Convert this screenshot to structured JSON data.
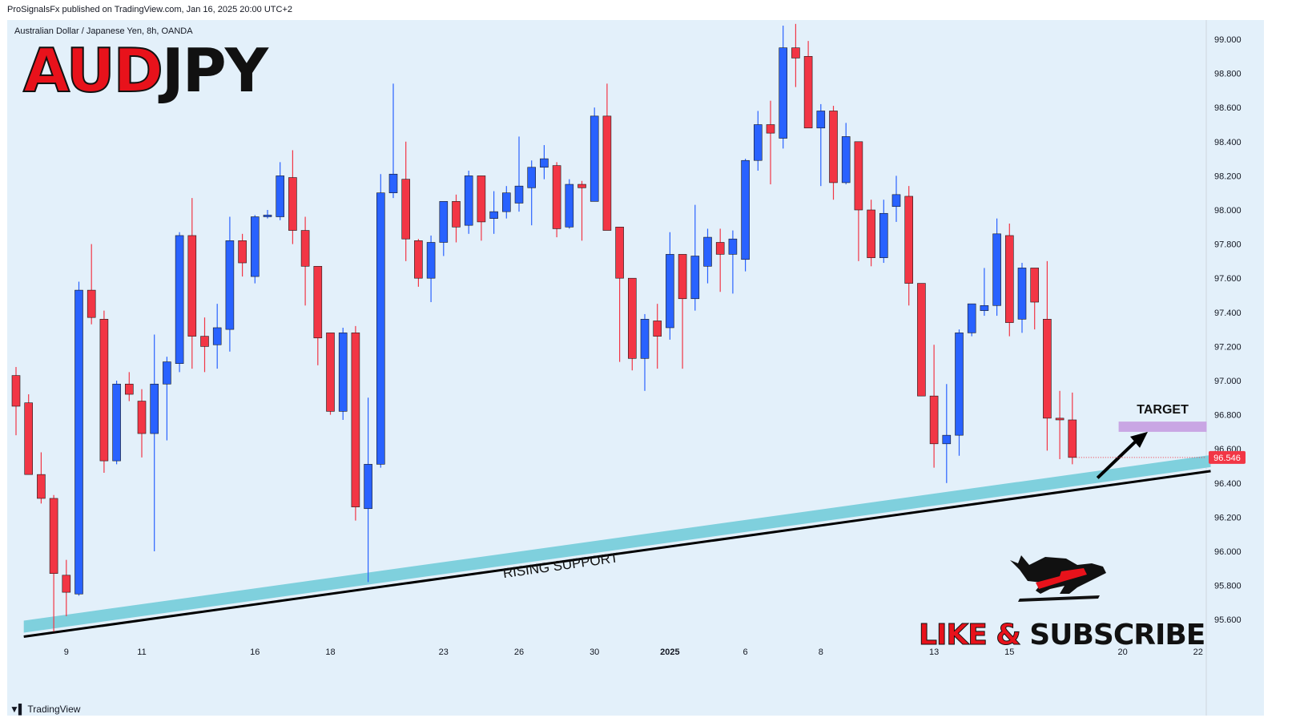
{
  "header": {
    "published": "ProSignalsFx published on TradingView.com, Jan 16, 2025 20:00 UTC+2"
  },
  "chart_meta": {
    "symbol_line": "Australian Dollar / Japanese Yen, 8h, OANDA",
    "title_part1": "AUD",
    "title_part2": "JPY",
    "price_tag": "96.546",
    "target_label": "TARGET",
    "support_label": "RISING SUPPORT",
    "brand_word1": "LIKE & ",
    "brand_word2": "SUBSCRIBE",
    "footer_logo": "TradingView"
  },
  "colors": {
    "up": "#2962ff",
    "down": "#f23645",
    "support_band": "#7fd0dd",
    "target_box": "#c9a6e4",
    "background": "#e3f0fa"
  },
  "chart_data": {
    "type": "candlestick",
    "ylim": [
      95.5,
      99.1
    ],
    "yticks": [
      "99.000",
      "98.800",
      "98.600",
      "98.400",
      "98.200",
      "98.000",
      "97.800",
      "97.600",
      "97.400",
      "97.200",
      "97.000",
      "96.800",
      "96.600",
      "96.400",
      "96.200",
      "96.000",
      "95.800",
      "95.600"
    ],
    "xticks": [
      {
        "label": "9",
        "i": 4
      },
      {
        "label": "11",
        "i": 10
      },
      {
        "label": "16",
        "i": 19
      },
      {
        "label": "18",
        "i": 25
      },
      {
        "label": "23",
        "i": 34
      },
      {
        "label": "26",
        "i": 40
      },
      {
        "label": "30",
        "i": 46
      },
      {
        "label": "2025",
        "i": 52,
        "bold": true
      },
      {
        "label": "6",
        "i": 58
      },
      {
        "label": "8",
        "i": 64
      },
      {
        "label": "13",
        "i": 73
      },
      {
        "label": "15",
        "i": 79
      },
      {
        "label": "20",
        "i": 88
      },
      {
        "label": "22",
        "i": 94
      }
    ],
    "candles": [
      {
        "o": 97.03,
        "h": 97.08,
        "l": 96.68,
        "c": 96.85
      },
      {
        "o": 96.87,
        "h": 96.92,
        "l": 96.45,
        "c": 96.45
      },
      {
        "o": 96.45,
        "h": 96.58,
        "l": 96.28,
        "c": 96.31
      },
      {
        "o": 96.31,
        "h": 96.33,
        "l": 95.53,
        "c": 95.87
      },
      {
        "o": 95.86,
        "h": 95.95,
        "l": 95.62,
        "c": 95.76
      },
      {
        "o": 95.75,
        "h": 97.58,
        "l": 95.74,
        "c": 97.53
      },
      {
        "o": 97.53,
        "h": 97.8,
        "l": 97.33,
        "c": 97.37
      },
      {
        "o": 97.36,
        "h": 97.41,
        "l": 96.46,
        "c": 96.53
      },
      {
        "o": 96.53,
        "h": 97.0,
        "l": 96.51,
        "c": 96.98
      },
      {
        "o": 96.98,
        "h": 97.05,
        "l": 96.88,
        "c": 96.92
      },
      {
        "o": 96.88,
        "h": 96.95,
        "l": 96.55,
        "c": 96.69
      },
      {
        "o": 96.69,
        "h": 97.27,
        "l": 96.0,
        "c": 96.98
      },
      {
        "o": 96.98,
        "h": 97.14,
        "l": 96.65,
        "c": 97.11
      },
      {
        "o": 97.1,
        "h": 97.87,
        "l": 97.05,
        "c": 97.85
      },
      {
        "o": 97.85,
        "h": 98.07,
        "l": 97.07,
        "c": 97.26
      },
      {
        "o": 97.26,
        "h": 97.37,
        "l": 97.05,
        "c": 97.2
      },
      {
        "o": 97.21,
        "h": 97.45,
        "l": 97.07,
        "c": 97.31
      },
      {
        "o": 97.3,
        "h": 97.96,
        "l": 97.17,
        "c": 97.82
      },
      {
        "o": 97.82,
        "h": 97.86,
        "l": 97.61,
        "c": 97.69
      },
      {
        "o": 97.61,
        "h": 97.97,
        "l": 97.57,
        "c": 97.96
      },
      {
        "o": 97.96,
        "h": 98.0,
        "l": 97.95,
        "c": 97.97
      },
      {
        "o": 97.96,
        "h": 98.28,
        "l": 97.94,
        "c": 98.2
      },
      {
        "o": 98.19,
        "h": 98.35,
        "l": 97.8,
        "c": 97.88
      },
      {
        "o": 97.88,
        "h": 97.96,
        "l": 97.44,
        "c": 97.67
      },
      {
        "o": 97.67,
        "h": 97.67,
        "l": 97.09,
        "c": 97.25
      },
      {
        "o": 97.28,
        "h": 97.28,
        "l": 96.8,
        "c": 96.82
      },
      {
        "o": 96.82,
        "h": 97.31,
        "l": 96.77,
        "c": 97.28
      },
      {
        "o": 97.28,
        "h": 97.32,
        "l": 96.18,
        "c": 96.26
      },
      {
        "o": 96.25,
        "h": 96.9,
        "l": 95.82,
        "c": 96.51
      },
      {
        "o": 96.51,
        "h": 98.21,
        "l": 96.49,
        "c": 98.1
      },
      {
        "o": 98.1,
        "h": 98.74,
        "l": 98.07,
        "c": 98.21
      },
      {
        "o": 98.18,
        "h": 98.4,
        "l": 97.7,
        "c": 97.83
      },
      {
        "o": 97.82,
        "h": 97.83,
        "l": 97.55,
        "c": 97.6
      },
      {
        "o": 97.6,
        "h": 97.85,
        "l": 97.46,
        "c": 97.81
      },
      {
        "o": 97.81,
        "h": 98.03,
        "l": 97.73,
        "c": 98.05
      },
      {
        "o": 98.05,
        "h": 98.09,
        "l": 97.81,
        "c": 97.9
      },
      {
        "o": 97.91,
        "h": 98.23,
        "l": 97.86,
        "c": 98.2
      },
      {
        "o": 98.2,
        "h": 98.2,
        "l": 97.82,
        "c": 97.93
      },
      {
        "o": 97.95,
        "h": 98.11,
        "l": 97.86,
        "c": 97.99
      },
      {
        "o": 97.99,
        "h": 98.14,
        "l": 97.95,
        "c": 98.1
      },
      {
        "o": 98.04,
        "h": 98.43,
        "l": 97.99,
        "c": 98.14
      },
      {
        "o": 98.13,
        "h": 98.29,
        "l": 97.91,
        "c": 98.25
      },
      {
        "o": 98.25,
        "h": 98.38,
        "l": 98.18,
        "c": 98.3
      },
      {
        "o": 98.26,
        "h": 98.28,
        "l": 97.84,
        "c": 97.89
      },
      {
        "o": 97.9,
        "h": 98.18,
        "l": 97.89,
        "c": 98.15
      },
      {
        "o": 98.15,
        "h": 98.17,
        "l": 97.82,
        "c": 98.13
      },
      {
        "o": 98.05,
        "h": 98.6,
        "l": 98.05,
        "c": 98.55
      },
      {
        "o": 98.55,
        "h": 98.74,
        "l": 97.89,
        "c": 97.88
      },
      {
        "o": 97.9,
        "h": 97.9,
        "l": 97.11,
        "c": 97.6
      },
      {
        "o": 97.6,
        "h": 97.6,
        "l": 97.06,
        "c": 97.13
      },
      {
        "o": 97.13,
        "h": 97.39,
        "l": 96.94,
        "c": 97.36
      },
      {
        "o": 97.35,
        "h": 97.45,
        "l": 97.07,
        "c": 97.26
      },
      {
        "o": 97.31,
        "h": 97.87,
        "l": 97.24,
        "c": 97.74
      },
      {
        "o": 97.74,
        "h": 97.73,
        "l": 97.07,
        "c": 97.48
      },
      {
        "o": 97.48,
        "h": 98.03,
        "l": 97.41,
        "c": 97.73
      },
      {
        "o": 97.67,
        "h": 97.89,
        "l": 97.57,
        "c": 97.84
      },
      {
        "o": 97.81,
        "h": 97.89,
        "l": 97.52,
        "c": 97.74
      },
      {
        "o": 97.74,
        "h": 97.88,
        "l": 97.51,
        "c": 97.83
      },
      {
        "o": 97.71,
        "h": 98.3,
        "l": 97.64,
        "c": 98.29
      },
      {
        "o": 98.29,
        "h": 98.58,
        "l": 98.23,
        "c": 98.5
      },
      {
        "o": 98.5,
        "h": 98.64,
        "l": 98.15,
        "c": 98.45
      },
      {
        "o": 98.42,
        "h": 99.08,
        "l": 98.36,
        "c": 98.95
      },
      {
        "o": 98.95,
        "h": 99.09,
        "l": 98.72,
        "c": 98.89
      },
      {
        "o": 98.9,
        "h": 98.99,
        "l": 98.49,
        "c": 98.48
      },
      {
        "o": 98.48,
        "h": 98.62,
        "l": 98.14,
        "c": 98.58
      },
      {
        "o": 98.58,
        "h": 98.61,
        "l": 98.06,
        "c": 98.16
      },
      {
        "o": 98.16,
        "h": 98.51,
        "l": 98.15,
        "c": 98.43
      },
      {
        "o": 98.4,
        "h": 98.4,
        "l": 97.7,
        "c": 98.0
      },
      {
        "o": 98.0,
        "h": 98.06,
        "l": 97.67,
        "c": 97.72
      },
      {
        "o": 97.72,
        "h": 98.06,
        "l": 97.69,
        "c": 97.98
      },
      {
        "o": 98.02,
        "h": 98.2,
        "l": 97.93,
        "c": 98.09
      },
      {
        "o": 98.08,
        "h": 98.14,
        "l": 97.44,
        "c": 97.57
      },
      {
        "o": 97.57,
        "h": 97.57,
        "l": 96.91,
        "c": 96.91
      },
      {
        "o": 96.91,
        "h": 97.21,
        "l": 96.49,
        "c": 96.63
      },
      {
        "o": 96.63,
        "h": 96.98,
        "l": 96.4,
        "c": 96.68
      },
      {
        "o": 96.68,
        "h": 97.3,
        "l": 96.56,
        "c": 97.28
      },
      {
        "o": 97.28,
        "h": 97.45,
        "l": 97.26,
        "c": 97.45
      },
      {
        "o": 97.41,
        "h": 97.66,
        "l": 97.38,
        "c": 97.44
      },
      {
        "o": 97.44,
        "h": 97.95,
        "l": 97.38,
        "c": 97.86
      },
      {
        "o": 97.85,
        "h": 97.92,
        "l": 97.26,
        "c": 97.34
      },
      {
        "o": 97.36,
        "h": 97.69,
        "l": 97.28,
        "c": 97.66
      },
      {
        "o": 97.66,
        "h": 97.66,
        "l": 97.3,
        "c": 97.46
      },
      {
        "o": 97.36,
        "h": 97.7,
        "l": 96.59,
        "c": 96.78
      },
      {
        "o": 96.78,
        "h": 96.94,
        "l": 96.54,
        "c": 96.77
      },
      {
        "o": 96.77,
        "h": 96.93,
        "l": 96.51,
        "c": 96.55
      }
    ],
    "support_line": {
      "i0": 1,
      "y0": 95.5,
      "i1": 95,
      "y1": 96.47
    },
    "target_zone": {
      "i0": 88,
      "i1": 95,
      "y_low": 96.7,
      "y_high": 96.76
    },
    "arrow": {
      "i0": 86,
      "y0": 96.43,
      "i1": 90,
      "y1": 96.7
    }
  }
}
